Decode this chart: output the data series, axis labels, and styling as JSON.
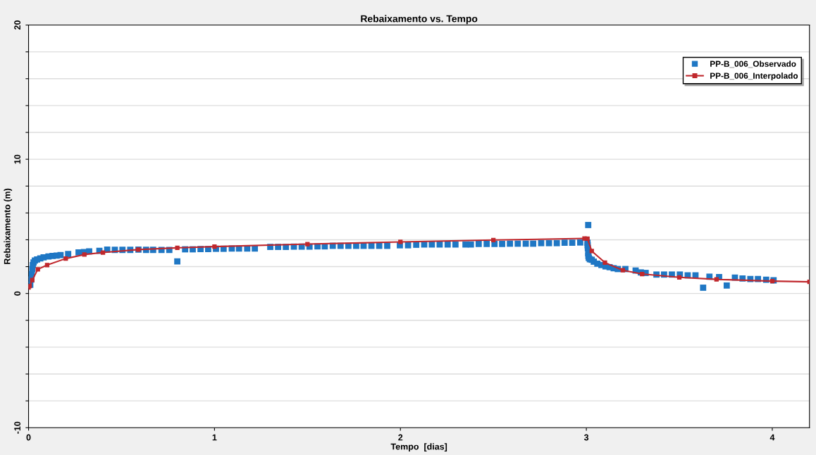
{
  "chart_data": {
    "type": "scatter",
    "title": "Rebaixamento vs. Tempo",
    "xlabel": "Tempo  [dias]",
    "ylabel": "Rebaixamento (m)",
    "xlim": [
      0,
      4.2
    ],
    "xticks": [
      0,
      1,
      2,
      3,
      4
    ],
    "ylim": [
      -10,
      20
    ],
    "yticks": [
      -10,
      {
        "value": -8,
        "label": null
      },
      {
        "value": -6,
        "label": null
      },
      {
        "value": -4,
        "label": null
      },
      {
        "value": -2,
        "label": null
      },
      0,
      {
        "value": 2,
        "label": null
      },
      {
        "value": 4,
        "label": null
      },
      {
        "value": 6,
        "label": null
      },
      {
        "value": 8,
        "label": null
      },
      10,
      {
        "value": 12,
        "label": null
      },
      {
        "value": 14,
        "label": null
      },
      {
        "value": 16,
        "label": null
      },
      {
        "value": 18,
        "label": null
      },
      20
    ],
    "grid": "y",
    "legend": "top right",
    "series": [
      {
        "name": "PP-B_006_Observado",
        "marker": "square",
        "color": "#1f77c4",
        "x": [
          0.009,
          0.014,
          0.017,
          0.02,
          0.023,
          0.027,
          0.034,
          0.046,
          0.063,
          0.081,
          0.107,
          0.129,
          0.151,
          0.172,
          0.213,
          0.269,
          0.298,
          0.326,
          0.381,
          0.423,
          0.464,
          0.505,
          0.547,
          0.591,
          0.632,
          0.67,
          0.715,
          0.757,
          0.8,
          0.842,
          0.883,
          0.925,
          0.966,
          1.008,
          1.049,
          1.093,
          1.132,
          1.176,
          1.217,
          1.3,
          1.342,
          1.384,
          1.427,
          1.469,
          1.511,
          1.554,
          1.593,
          1.636,
          1.678,
          1.72,
          1.762,
          1.802,
          1.844,
          1.886,
          1.929,
          1.997,
          2.041,
          2.085,
          2.128,
          2.169,
          2.211,
          2.254,
          2.296,
          2.35,
          2.379,
          2.421,
          2.464,
          2.506,
          2.547,
          2.589,
          2.631,
          2.674,
          2.714,
          2.757,
          2.799,
          2.841,
          2.883,
          2.924,
          2.967,
          3.006,
          3.007,
          3.008,
          3.01,
          3.01,
          3.011,
          3.013,
          3.019,
          3.029,
          3.04,
          3.059,
          3.081,
          3.103,
          3.125,
          3.147,
          3.169,
          3.21,
          3.265,
          3.293,
          3.319,
          3.377,
          3.418,
          3.46,
          3.503,
          3.545,
          3.587,
          3.628,
          3.662,
          3.714,
          3.755,
          3.799,
          3.84,
          3.882,
          3.923,
          3.967,
          4.007
        ],
        "values": [
          0.65,
          1.04,
          1.43,
          1.82,
          2.12,
          2.31,
          2.45,
          2.53,
          2.61,
          2.69,
          2.76,
          2.8,
          2.82,
          2.86,
          2.94,
          3.06,
          3.08,
          3.14,
          3.18,
          3.27,
          3.25,
          3.25,
          3.25,
          3.27,
          3.25,
          3.25,
          3.24,
          3.24,
          2.39,
          3.29,
          3.29,
          3.31,
          3.31,
          3.33,
          3.33,
          3.35,
          3.35,
          3.35,
          3.35,
          3.47,
          3.47,
          3.47,
          3.49,
          3.49,
          3.49,
          3.51,
          3.51,
          3.55,
          3.55,
          3.55,
          3.55,
          3.55,
          3.55,
          3.55,
          3.55,
          3.59,
          3.59,
          3.63,
          3.65,
          3.65,
          3.65,
          3.65,
          3.65,
          3.65,
          3.65,
          3.69,
          3.69,
          3.69,
          3.69,
          3.71,
          3.71,
          3.71,
          3.71,
          3.75,
          3.75,
          3.75,
          3.78,
          3.78,
          3.8,
          3.78,
          3.59,
          3.39,
          5.1,
          3.0,
          2.8,
          2.65,
          2.55,
          2.51,
          2.37,
          2.22,
          2.12,
          2.02,
          1.96,
          1.88,
          1.82,
          1.82,
          1.71,
          1.57,
          1.53,
          1.41,
          1.41,
          1.41,
          1.41,
          1.35,
          1.35,
          0.43,
          1.25,
          1.22,
          0.59,
          1.18,
          1.12,
          1.08,
          1.08,
          1.02,
          0.98
        ]
      },
      {
        "name": "PP-B_006_Interpolado",
        "type": "line",
        "marker": "square",
        "color": "#c0282d",
        "x": [
          0.0,
          0.006,
          0.02,
          0.05,
          0.1,
          0.2,
          0.3,
          0.4,
          0.59,
          0.8,
          1.0,
          1.5,
          2.0,
          2.5,
          2.99,
          3.006,
          3.029,
          3.1,
          3.196,
          3.3,
          3.5,
          3.7,
          4.0,
          4.2
        ],
        "values": [
          0.45,
          0.55,
          1.0,
          1.8,
          2.12,
          2.6,
          2.9,
          3.05,
          3.27,
          3.4,
          3.49,
          3.68,
          3.84,
          3.98,
          4.1,
          4.08,
          3.16,
          2.3,
          1.73,
          1.45,
          1.2,
          1.05,
          0.92,
          0.87
        ]
      }
    ]
  }
}
